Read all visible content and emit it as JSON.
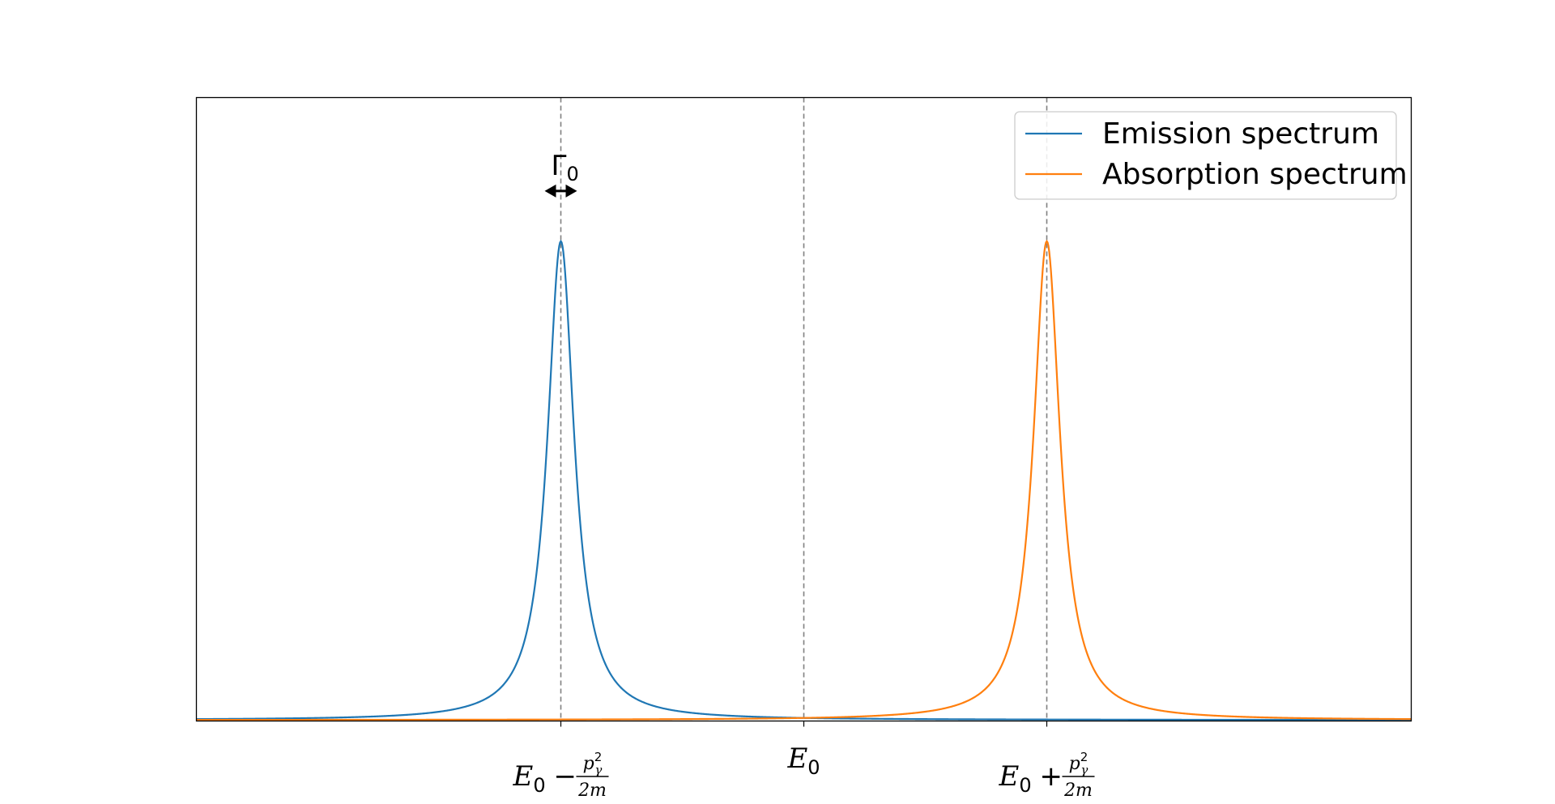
{
  "chart_data": {
    "type": "line",
    "title": "",
    "xlabel": "",
    "ylabel": "",
    "xlim": [
      -1.5,
      1.5
    ],
    "ylim": [
      -0.002,
      1.3
    ],
    "grid": false,
    "legend_placement": "top-right",
    "colors": {
      "emission": "#1f77b4",
      "absorption": "#ff7f0e",
      "reference": "#808080"
    },
    "ticks": [
      {
        "x": -0.6,
        "main": "E",
        "sub": "0",
        "op": "−",
        "num": "p",
        "num_sup": "2",
        "num_sub": "γ",
        "den": "2m"
      },
      {
        "x": 0.0,
        "main": "E",
        "sub": "0",
        "op": "",
        "num": "",
        "num_sup": "",
        "num_sub": "",
        "den": ""
      },
      {
        "x": 0.6,
        "main": "E",
        "sub": "0",
        "op": "+",
        "num": "p",
        "num_sup": "2",
        "num_sub": "γ",
        "den": "2m"
      }
    ],
    "reference_lines_x": [
      -0.6,
      0.0,
      0.6
    ],
    "series": [
      {
        "name": "Emission spectrum",
        "shape": "lorentzian",
        "center": -0.6,
        "gamma": 0.04,
        "peak": 1.0,
        "color": "#1f77b4"
      },
      {
        "name": "Absorption spectrum",
        "shape": "lorentzian",
        "center": 0.6,
        "gamma": 0.04,
        "peak": 1.0,
        "color": "#ff7f0e"
      }
    ],
    "annotation": {
      "label_main": "Γ",
      "label_sub": "0",
      "x": -0.6,
      "width": 0.08,
      "y": 1.105
    }
  }
}
